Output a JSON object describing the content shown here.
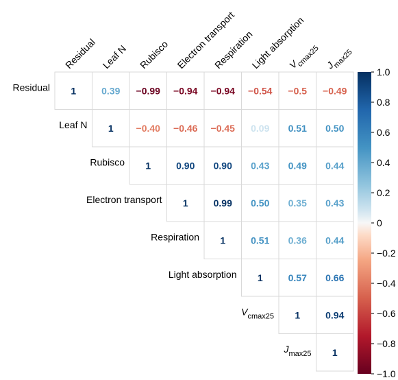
{
  "chart_data": {
    "type": "heatmap",
    "layout": "upper-triangular correlation matrix",
    "variables": [
      "Residual",
      "Leaf N",
      "Rubisco",
      "Electron transport",
      "Respiration",
      "Light absorption",
      "Vcmax25",
      "Jmax25"
    ],
    "variable_display": [
      {
        "main": "Residual",
        "sub": ""
      },
      {
        "main": "Leaf N",
        "sub": ""
      },
      {
        "main": "Rubisco",
        "sub": ""
      },
      {
        "main": "Electron transport",
        "sub": ""
      },
      {
        "main": "Respiration",
        "sub": ""
      },
      {
        "main": "Light absorption",
        "sub": ""
      },
      {
        "main": "V",
        "sub": "cmax25"
      },
      {
        "main": "J",
        "sub": "max25"
      }
    ],
    "cells": [
      {
        "row": 0,
        "col": 0,
        "value": 1,
        "label": "1"
      },
      {
        "row": 0,
        "col": 1,
        "value": 0.39,
        "label": "0.39"
      },
      {
        "row": 0,
        "col": 2,
        "value": -0.99,
        "label": "−0.99"
      },
      {
        "row": 0,
        "col": 3,
        "value": -0.94,
        "label": "−0.94"
      },
      {
        "row": 0,
        "col": 4,
        "value": -0.94,
        "label": "−0.94"
      },
      {
        "row": 0,
        "col": 5,
        "value": -0.54,
        "label": "−0.54"
      },
      {
        "row": 0,
        "col": 6,
        "value": -0.5,
        "label": "−0.5"
      },
      {
        "row": 0,
        "col": 7,
        "value": -0.49,
        "label": "−0.49"
      },
      {
        "row": 1,
        "col": 1,
        "value": 1,
        "label": "1"
      },
      {
        "row": 1,
        "col": 2,
        "value": -0.4,
        "label": "−0.40"
      },
      {
        "row": 1,
        "col": 3,
        "value": -0.46,
        "label": "−0.46"
      },
      {
        "row": 1,
        "col": 4,
        "value": -0.45,
        "label": "−0.45"
      },
      {
        "row": 1,
        "col": 5,
        "value": 0.09,
        "label": "0.09"
      },
      {
        "row": 1,
        "col": 6,
        "value": 0.51,
        "label": "0.51"
      },
      {
        "row": 1,
        "col": 7,
        "value": 0.5,
        "label": "0.50"
      },
      {
        "row": 2,
        "col": 2,
        "value": 1,
        "label": "1"
      },
      {
        "row": 2,
        "col": 3,
        "value": 0.9,
        "label": "0.90"
      },
      {
        "row": 2,
        "col": 4,
        "value": 0.9,
        "label": "0.90"
      },
      {
        "row": 2,
        "col": 5,
        "value": 0.43,
        "label": "0.43"
      },
      {
        "row": 2,
        "col": 6,
        "value": 0.49,
        "label": "0.49"
      },
      {
        "row": 2,
        "col": 7,
        "value": 0.44,
        "label": "0.44"
      },
      {
        "row": 3,
        "col": 3,
        "value": 1,
        "label": "1"
      },
      {
        "row": 3,
        "col": 4,
        "value": 0.99,
        "label": "0.99"
      },
      {
        "row": 3,
        "col": 5,
        "value": 0.5,
        "label": "0.50"
      },
      {
        "row": 3,
        "col": 6,
        "value": 0.35,
        "label": "0.35"
      },
      {
        "row": 3,
        "col": 7,
        "value": 0.43,
        "label": "0.43"
      },
      {
        "row": 4,
        "col": 4,
        "value": 1,
        "label": "1"
      },
      {
        "row": 4,
        "col": 5,
        "value": 0.51,
        "label": "0.51"
      },
      {
        "row": 4,
        "col": 6,
        "value": 0.36,
        "label": "0.36"
      },
      {
        "row": 4,
        "col": 7,
        "value": 0.44,
        "label": "0.44"
      },
      {
        "row": 5,
        "col": 5,
        "value": 1,
        "label": "1"
      },
      {
        "row": 5,
        "col": 6,
        "value": 0.57,
        "label": "0.57"
      },
      {
        "row": 5,
        "col": 7,
        "value": 0.66,
        "label": "0.66"
      },
      {
        "row": 6,
        "col": 6,
        "value": 1,
        "label": "1"
      },
      {
        "row": 6,
        "col": 7,
        "value": 0.94,
        "label": "0.94"
      },
      {
        "row": 7,
        "col": 7,
        "value": 1,
        "label": "1"
      }
    ],
    "colorbar": {
      "range": [
        -1.0,
        1.0
      ],
      "ticks": [
        {
          "value": 1.0,
          "label": "1.0"
        },
        {
          "value": 0.8,
          "label": "0.8"
        },
        {
          "value": 0.6,
          "label": "0.6"
        },
        {
          "value": 0.4,
          "label": "0.4"
        },
        {
          "value": 0.2,
          "label": "0.2"
        },
        {
          "value": 0,
          "label": "0"
        },
        {
          "value": -0.2,
          "label": "−0.2"
        },
        {
          "value": -0.4,
          "label": "−0.4"
        },
        {
          "value": -0.6,
          "label": "−0.6"
        },
        {
          "value": -0.8,
          "label": "−0.8"
        },
        {
          "value": -1.0,
          "label": "−1.0"
        }
      ],
      "colormap": "RdBu diverging",
      "color_negative": "#67001f",
      "color_zero": "#f7f7f7",
      "color_positive": "#053061"
    }
  }
}
